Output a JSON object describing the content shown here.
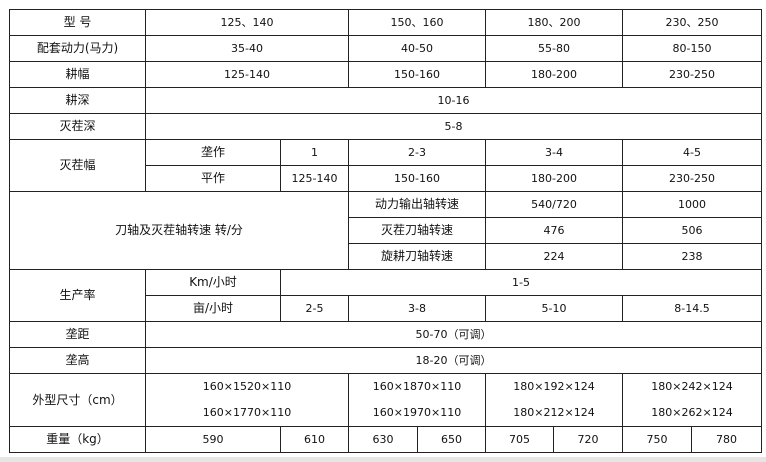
{
  "spec_table": {
    "model": {
      "label": "型 号",
      "values": [
        "125、140",
        "150、160",
        "180、200",
        "230、250"
      ]
    },
    "power": {
      "label": "配套动力(马力)",
      "values": [
        "35-40",
        "40-50",
        "55-80",
        "80-150"
      ]
    },
    "tilling_width": {
      "label": "耕幅",
      "values": [
        "125-140",
        "150-160",
        "180-200",
        "230-250"
      ]
    },
    "tilling_depth": {
      "label": "耕深",
      "value": "10-16"
    },
    "stubble_depth": {
      "label": "灭茬深",
      "value": "5-8"
    },
    "stubble_width": {
      "label": "灭茬幅",
      "ridge": {
        "label": "垄作",
        "values": [
          "1",
          "2-3",
          "3-4",
          "4-5"
        ]
      },
      "flat": {
        "label": "平作",
        "values": [
          "125-140",
          "150-160",
          "180-200",
          "230-250"
        ]
      }
    },
    "shaft_speed": {
      "label": "刀轴及灭茬轴转速 转/分",
      "pto": {
        "label": "动力输出轴转速",
        "values": [
          "540/720",
          "1000"
        ]
      },
      "stubble_blade": {
        "label": "灭茬刀轴转速",
        "values": [
          "476",
          "506"
        ]
      },
      "rotary_blade": {
        "label": "旋耕刀轴转速",
        "values": [
          "224",
          "238"
        ]
      }
    },
    "productivity": {
      "label": "生产率",
      "km": {
        "label": "Km/小时",
        "value": "1-5"
      },
      "mu": {
        "label": "亩/小时",
        "values": [
          "2-5",
          "3-8",
          "5-10",
          "8-14.5"
        ]
      }
    },
    "ridge_spacing": {
      "label": "垄距",
      "value": "50-70（可调）"
    },
    "ridge_height": {
      "label": "垄高",
      "value": "18-20（可调）"
    },
    "dimensions": {
      "label": "外型尺寸（cm）",
      "values": [
        [
          "160×1520×110",
          "160×1770×110"
        ],
        [
          "160×1870×110",
          "160×1970×110"
        ],
        [
          "180×192×124",
          "180×212×124"
        ],
        [
          "180×242×124",
          "180×262×124"
        ]
      ]
    },
    "weight": {
      "label": "重量（kg）",
      "values": [
        "590",
        "610",
        "630",
        "650",
        "705",
        "720",
        "750",
        "780"
      ]
    }
  }
}
